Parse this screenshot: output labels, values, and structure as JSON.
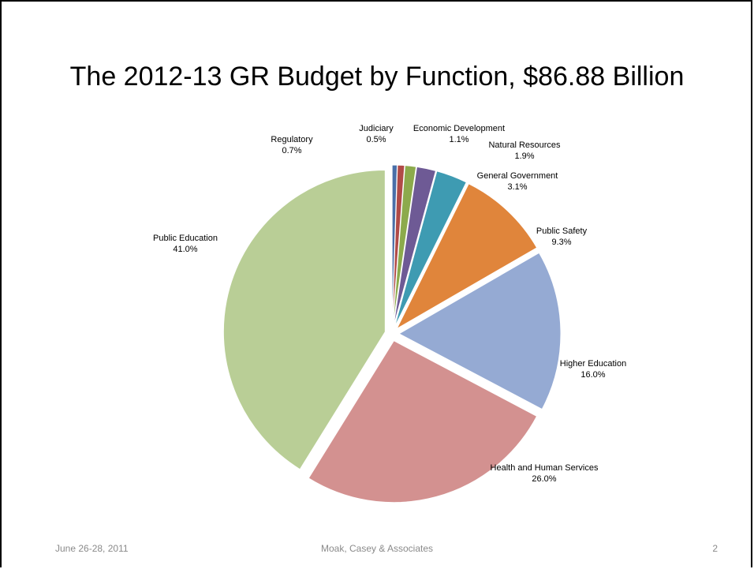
{
  "slide": {
    "title": "The 2012-13 GR Budget by Function, $86.88 Billion",
    "footer_left": "June 26-28, 2011",
    "footer_center": "Moak, Casey & Associates",
    "page_number": "2"
  },
  "chart_data": {
    "type": "pie",
    "title": "The 2012-13 GR Budget by Function, $86.88 Billion",
    "slices": [
      {
        "label": "Judiciary",
        "value": 0.5,
        "display": "0.5%",
        "color": "#4a6fa8"
      },
      {
        "label": "Regulatory",
        "value": 0.7,
        "display": "0.7%",
        "color": "#b04a47"
      },
      {
        "label": "Economic Development",
        "value": 1.1,
        "display": "1.1%",
        "color": "#8caa4c"
      },
      {
        "label": "Natural Resources",
        "value": 1.9,
        "display": "1.9%",
        "color": "#6e5a95"
      },
      {
        "label": "General Government",
        "value": 3.1,
        "display": "3.1%",
        "color": "#3e9bb2"
      },
      {
        "label": "Public Safety",
        "value": 9.3,
        "display": "9.3%",
        "color": "#e0853b"
      },
      {
        "label": "Higher Education",
        "value": 16.0,
        "display": "16.0%",
        "color": "#95aad3"
      },
      {
        "label": "Health and Human Services",
        "value": 26.0,
        "display": "26.0%",
        "color": "#d39190"
      },
      {
        "label": "Public Education",
        "value": 41.0,
        "display": "41.0%",
        "color": "#b9ce96"
      }
    ],
    "legend": "none"
  }
}
